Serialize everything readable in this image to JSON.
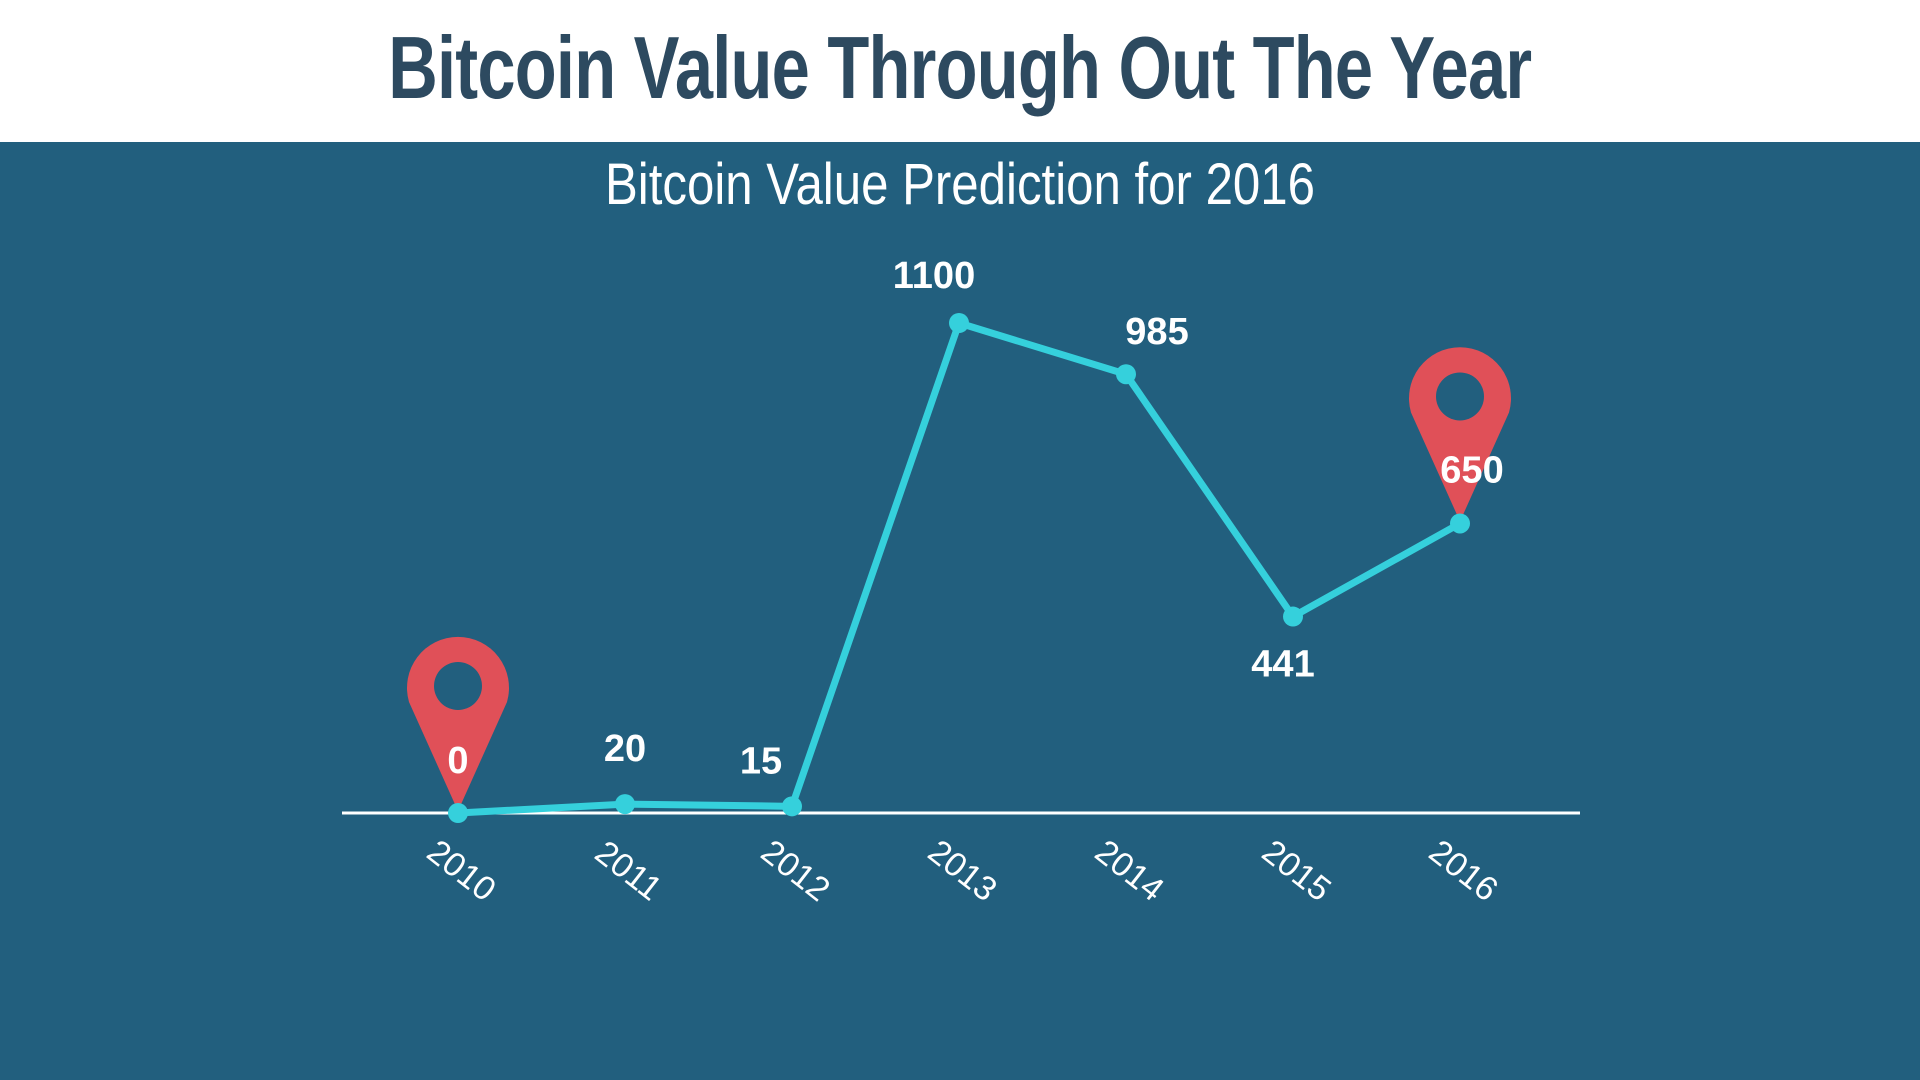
{
  "slide": {
    "title": "Bitcoin Value Through Out The Year"
  },
  "colors": {
    "header_bg": "#ffffff",
    "title_text": "#2d4a60",
    "panel_bg": "#225f7e",
    "line": "#35d0dc",
    "marker": "#e05058",
    "text": "#ffffff"
  },
  "chart_data": {
    "type": "line",
    "title": "Bitcoin Value Prediction for 2016",
    "xlabel": "",
    "ylabel": "",
    "categories": [
      "2010",
      "2011",
      "2012",
      "2013",
      "2014",
      "2015",
      "2016"
    ],
    "series": [
      {
        "values": [
          0,
          20,
          15,
          1100,
          985,
          441,
          650
        ]
      }
    ],
    "data_labels": [
      "0",
      "20",
      "15",
      "1100",
      "985",
      "441",
      "650"
    ],
    "highlighted": [
      "2010",
      "2016"
    ],
    "ylim": [
      0,
      1100
    ],
    "grid": false,
    "legend": "none",
    "icons": [
      "location-pin-icon",
      "location-pin-icon"
    ]
  }
}
